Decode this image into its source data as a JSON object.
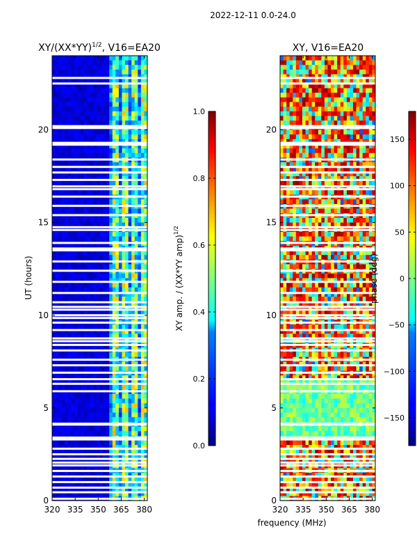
{
  "suptitle": "2022-12-11 0.0-24.0",
  "xlabel_shared": "frequency (MHz)",
  "chart_data": [
    {
      "type": "heatmap",
      "title": "XY/(XX*YY)",
      "title_exponent": "1/2",
      "title_suffix": ", V16=EA20",
      "xlabel": "",
      "ylabel": "UT (hours)",
      "xlim": [
        320,
        382
      ],
      "ylim": [
        0,
        24
      ],
      "xticks": [
        320,
        335,
        350,
        365,
        380
      ],
      "yticks": [
        0,
        5,
        10,
        15,
        20
      ],
      "colorbar": {
        "label": "XY amp. / (XX*YY amp)",
        "label_exponent": "1/2",
        "range": [
          0.0,
          1.0
        ],
        "ticks": [
          "0.0",
          "0.2",
          "0.4",
          "0.6",
          "0.8",
          "1.0"
        ],
        "tick_values": [
          0.0,
          0.2,
          0.4,
          0.6,
          0.8,
          1.0
        ],
        "colormap": "jet"
      },
      "flagged_gaps_hours": [
        0.1,
        0.45,
        0.7,
        1.0,
        1.3,
        1.6,
        1.9,
        2.05,
        2.25,
        2.5,
        2.8,
        3.3,
        3.4,
        4.1,
        4.15,
        5.9,
        6.3,
        6.55,
        6.9,
        7.3,
        7.6,
        8.1,
        8.4,
        8.6,
        8.75,
        9.2,
        9.6,
        9.85,
        10.0,
        10.3,
        10.45,
        10.7,
        11.2,
        11.8,
        12.4,
        12.9,
        13.5,
        13.6,
        13.9,
        14.6,
        14.75,
        15.4,
        15.9,
        16.4,
        16.8,
        16.95,
        17.3,
        17.7,
        18.0,
        18.4,
        19.2,
        19.3,
        20.1,
        20.2,
        22.5,
        22.8
      ]
    },
    {
      "type": "heatmap",
      "title": "XY, V16=EA20",
      "xlabel": "",
      "ylabel": "",
      "xlim": [
        320,
        382
      ],
      "ylim": [
        0,
        24
      ],
      "xticks": [
        320,
        335,
        350,
        365,
        380
      ],
      "yticks": [
        0,
        5,
        10,
        15,
        20
      ],
      "colorbar": {
        "label": "phase (deg)",
        "range": [
          -180,
          180
        ],
        "ticks": [
          "150",
          "100",
          "50",
          "0",
          "−50",
          "−100",
          "−150"
        ],
        "tick_values": [
          150,
          100,
          50,
          0,
          -50,
          -100,
          -150
        ],
        "colormap": "jet"
      },
      "flagged_gaps_hours": [
        0.1,
        0.45,
        0.7,
        1.0,
        1.3,
        1.6,
        1.9,
        2.05,
        2.25,
        2.5,
        2.8,
        3.3,
        3.4,
        4.1,
        4.15,
        5.9,
        6.3,
        6.55,
        6.9,
        7.3,
        7.6,
        8.1,
        8.4,
        8.6,
        8.75,
        9.2,
        9.6,
        9.85,
        10.0,
        10.3,
        10.45,
        10.7,
        11.2,
        11.8,
        12.4,
        12.9,
        13.5,
        13.6,
        13.9,
        14.6,
        14.75,
        15.4,
        15.9,
        16.4,
        16.8,
        16.95,
        17.3,
        17.7,
        18.0,
        18.4,
        19.2,
        19.3,
        20.1,
        20.2,
        22.5,
        22.8
      ]
    }
  ]
}
